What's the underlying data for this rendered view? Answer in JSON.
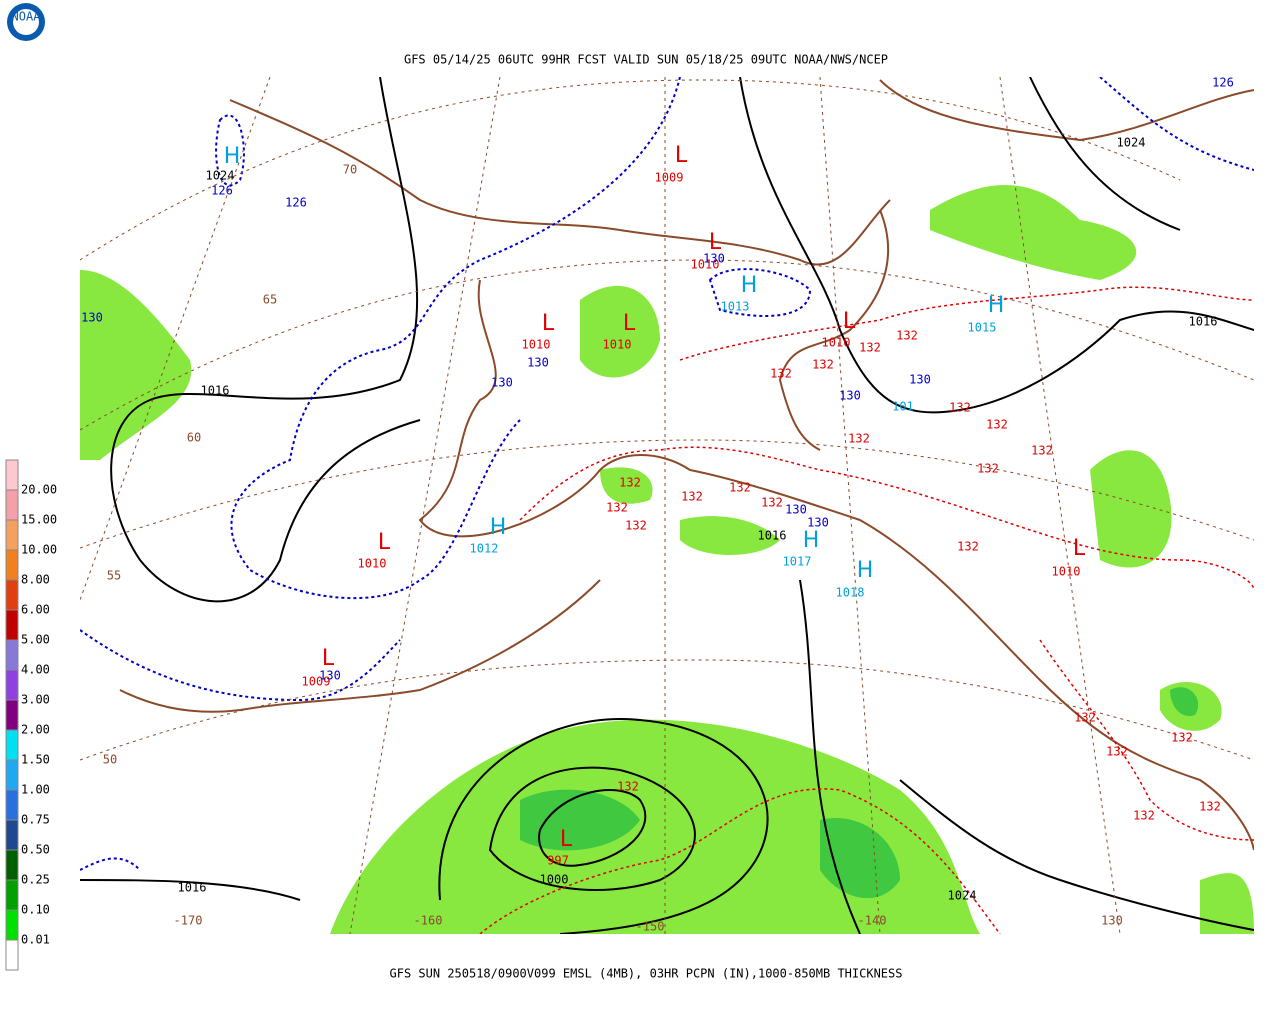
{
  "title": "GFS 05/14/25 06UTC 99HR FCST VALID SUN 05/18/25 09UTC NOAA/NWS/NCEP",
  "footer": "GFS SUN 250518/0900V099 EMSL (4MB), 03HR PCPN (IN),1000-850MB THICKNESS",
  "logo": "NOAA",
  "legend": {
    "items": [
      {
        "label": "20.00",
        "color": "#f4a0a8"
      },
      {
        "label": "15.00",
        "color": "#f4a060"
      },
      {
        "label": "10.00",
        "color": "#f08020"
      },
      {
        "label": "8.00",
        "color": "#e04010"
      },
      {
        "label": "6.00",
        "color": "#c00000"
      },
      {
        "label": "5.00",
        "color": "#8878d8"
      },
      {
        "label": "4.00",
        "color": "#9040e0"
      },
      {
        "label": "3.00",
        "color": "#800080"
      },
      {
        "label": "2.00",
        "color": "#00e0f0"
      },
      {
        "label": "1.50",
        "color": "#20a8f0"
      },
      {
        "label": "1.00",
        "color": "#2870e0"
      },
      {
        "label": "0.75",
        "color": "#204890"
      },
      {
        "label": "0.50",
        "color": "#006000"
      },
      {
        "label": "0.25",
        "color": "#00a000"
      },
      {
        "label": "0.10",
        "color": "#00e000"
      },
      {
        "label": "0.01",
        "color": "#90e840"
      }
    ]
  },
  "map": {
    "labels": [
      "H",
      "1024",
      "126",
      "70",
      "126",
      "L",
      "1009",
      "L",
      "1010",
      "130",
      "H",
      "1013",
      "65",
      "130",
      "L",
      "1010",
      "130",
      "L",
      "1010",
      "130",
      "1016",
      "L",
      "1010",
      "132",
      "132",
      "132",
      "132",
      "H",
      "1015",
      "1016",
      "126",
      "1024",
      "130",
      "130",
      "101",
      "132",
      "132",
      "132",
      "60",
      "132",
      "132",
      "132",
      "132",
      "132",
      "132",
      "130",
      "130",
      "132",
      "132",
      "1016",
      "H",
      "1012",
      "L",
      "1010",
      "H",
      "1017",
      "H",
      "1018",
      "132",
      "L",
      "1010",
      "55",
      "L",
      "1009",
      "130",
      "132",
      "132",
      "132",
      "50",
      "132",
      "132",
      "132",
      "L",
      "997",
      "1000",
      "1016",
      "1024",
      "-170",
      "-160",
      "-150",
      "-140",
      "130"
    ]
  }
}
